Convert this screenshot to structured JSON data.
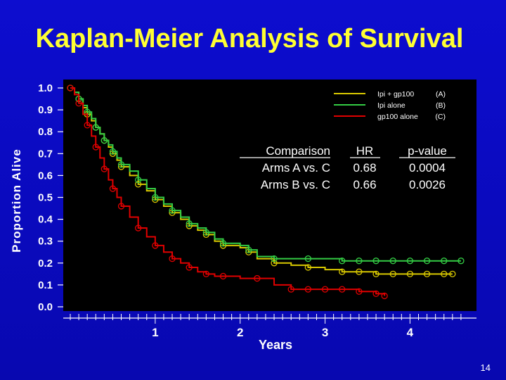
{
  "slide": {
    "title": "Kaplan-Meier Analysis of Survival",
    "page_number": "14"
  },
  "chart_data": {
    "type": "line",
    "title": "Kaplan-Meier Analysis of Survival",
    "xlabel": "Years",
    "ylabel": "Proportion Alive",
    "xlim": [
      0,
      4.7
    ],
    "ylim": [
      0,
      1.0
    ],
    "x_ticks": [
      "1",
      "2",
      "3",
      "4"
    ],
    "y_ticks": [
      "0.0",
      "0.1",
      "0.2",
      "0.3",
      "0.4",
      "0.5",
      "0.6",
      "0.7",
      "0.8",
      "0.9",
      "1.0"
    ],
    "grid": false,
    "legend_position": "top-right",
    "colors": {
      "background": "#0b0bc4",
      "plot_bg": "#000000",
      "title": "#ffff33",
      "series_A": "#d8c800",
      "series_B": "#33cc44",
      "series_C": "#e00000"
    },
    "series": [
      {
        "name": "Ipi + gp100",
        "code": "(A)",
        "color": "#d8c800",
        "x": [
          0,
          0.05,
          0.1,
          0.15,
          0.2,
          0.25,
          0.3,
          0.35,
          0.4,
          0.45,
          0.5,
          0.55,
          0.6,
          0.7,
          0.8,
          0.9,
          1.0,
          1.1,
          1.2,
          1.3,
          1.4,
          1.5,
          1.6,
          1.7,
          1.8,
          2.0,
          2.1,
          2.2,
          2.4,
          2.6,
          2.8,
          3.0,
          3.2,
          3.4,
          3.6,
          3.8,
          4.0,
          4.2,
          4.4,
          4.5
        ],
        "y": [
          1.0,
          0.98,
          0.95,
          0.91,
          0.88,
          0.85,
          0.82,
          0.79,
          0.76,
          0.73,
          0.7,
          0.67,
          0.64,
          0.6,
          0.56,
          0.53,
          0.49,
          0.46,
          0.43,
          0.4,
          0.37,
          0.35,
          0.33,
          0.3,
          0.28,
          0.27,
          0.25,
          0.22,
          0.2,
          0.19,
          0.18,
          0.17,
          0.16,
          0.16,
          0.15,
          0.15,
          0.15,
          0.15,
          0.15,
          0.15
        ]
      },
      {
        "name": "Ipi alone",
        "code": "(B)",
        "color": "#33cc44",
        "x": [
          0,
          0.05,
          0.1,
          0.15,
          0.2,
          0.25,
          0.3,
          0.35,
          0.4,
          0.45,
          0.5,
          0.55,
          0.6,
          0.7,
          0.8,
          0.9,
          1.0,
          1.1,
          1.2,
          1.3,
          1.4,
          1.5,
          1.6,
          1.7,
          1.8,
          2.0,
          2.1,
          2.2,
          2.4,
          2.6,
          2.8,
          3.0,
          3.2,
          3.4,
          3.6,
          3.8,
          4.0,
          4.2,
          4.4,
          4.6
        ],
        "y": [
          1.0,
          0.98,
          0.95,
          0.92,
          0.89,
          0.86,
          0.82,
          0.79,
          0.76,
          0.74,
          0.71,
          0.68,
          0.65,
          0.62,
          0.58,
          0.54,
          0.5,
          0.47,
          0.44,
          0.41,
          0.38,
          0.36,
          0.34,
          0.31,
          0.29,
          0.28,
          0.26,
          0.23,
          0.22,
          0.22,
          0.22,
          0.22,
          0.21,
          0.21,
          0.21,
          0.21,
          0.21,
          0.21,
          0.21,
          0.21
        ]
      },
      {
        "name": "gp100 alone",
        "code": "(C)",
        "color": "#e00000",
        "x": [
          0,
          0.05,
          0.1,
          0.15,
          0.2,
          0.25,
          0.3,
          0.35,
          0.4,
          0.45,
          0.5,
          0.55,
          0.6,
          0.7,
          0.8,
          0.9,
          1.0,
          1.1,
          1.2,
          1.3,
          1.4,
          1.5,
          1.6,
          1.7,
          1.8,
          2.0,
          2.2,
          2.4,
          2.6,
          2.8,
          3.0,
          3.2,
          3.4,
          3.6,
          3.7
        ],
        "y": [
          1.0,
          0.97,
          0.93,
          0.88,
          0.83,
          0.78,
          0.73,
          0.68,
          0.63,
          0.58,
          0.54,
          0.5,
          0.46,
          0.41,
          0.36,
          0.32,
          0.28,
          0.25,
          0.22,
          0.2,
          0.18,
          0.16,
          0.15,
          0.14,
          0.14,
          0.13,
          0.13,
          0.1,
          0.08,
          0.08,
          0.08,
          0.08,
          0.07,
          0.06,
          0.05
        ]
      }
    ],
    "comparison_table": {
      "headers": [
        "Comparison",
        "HR",
        "p-value"
      ],
      "rows": [
        [
          "Arms  A vs. C",
          "0.68",
          "0.0004"
        ],
        [
          "Arms  B vs. C",
          "0.66",
          "0.0026"
        ]
      ]
    }
  }
}
